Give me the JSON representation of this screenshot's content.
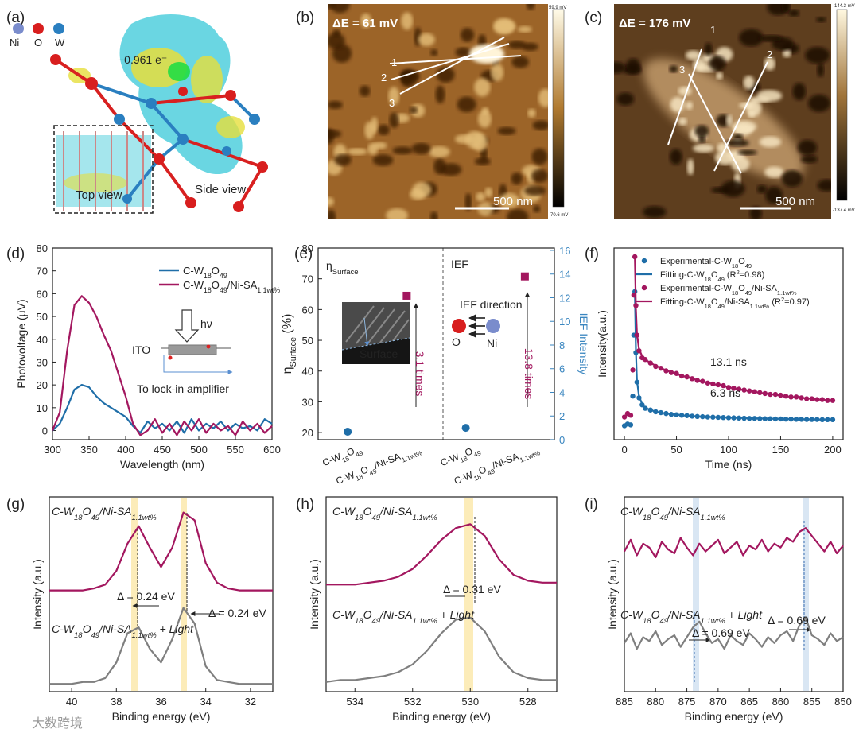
{
  "image_panels": [
    {
      "panel_label": "(a)",
      "texts": [
        "Ni",
        "O",
        "W",
        "−0.961 e⁻",
        "Top view",
        "Side view"
      ]
    },
    {
      "panel_label": "(b)",
      "texts": [
        "ΔE = 61 mV",
        "1",
        "2",
        "3",
        "500 nm"
      ],
      "colorbar_labels": [
        "59.9 mV",
        "-70.6 mV"
      ]
    },
    {
      "panel_label": "(c)",
      "texts": [
        "ΔE = 176 mV",
        "1",
        "2",
        "3",
        "500 nm"
      ],
      "colorbar_labels": [
        "144.3 mV",
        "-137.4 mV"
      ]
    }
  ],
  "watermark": "大数跨境",
  "chart_data": [
    {
      "type": "line",
      "panel_label": "(d)",
      "x": [
        300,
        310,
        320,
        330,
        340,
        350,
        360,
        370,
        380,
        390,
        400,
        410,
        420,
        430,
        440,
        450,
        460,
        470,
        480,
        490,
        500,
        510,
        520,
        530,
        540,
        550,
        560,
        570,
        580,
        590,
        600
      ],
      "series": [
        {
          "name": "C-W18O49",
          "color": "#1f6ea8",
          "values": [
            0,
            3,
            10,
            18,
            20,
            19,
            15,
            12,
            10,
            8,
            6,
            2,
            -1,
            4,
            1,
            3,
            0,
            4,
            -1,
            5,
            0,
            3,
            1,
            4,
            0,
            3,
            1,
            2,
            0,
            5,
            3
          ]
        },
        {
          "name": "C-W18O49/Ni-SA1.1wt%",
          "color": "#a3175f",
          "values": [
            0,
            8,
            35,
            55,
            59,
            56,
            50,
            42,
            35,
            25,
            15,
            3,
            -2,
            0,
            5,
            -1,
            3,
            -2,
            4,
            0,
            5,
            -1,
            3,
            0,
            2,
            -2,
            4,
            0,
            3,
            -1,
            2
          ]
        }
      ],
      "xlim": [
        300,
        600
      ],
      "ylim": [
        -4,
        80
      ],
      "xticks": [
        300,
        350,
        400,
        450,
        500,
        550,
        600
      ],
      "yticks": [
        0,
        10,
        20,
        30,
        40,
        50,
        60,
        70,
        80
      ],
      "xlabel": "Wavelength (nm)",
      "ylabel": "Photovoltage (μV)",
      "legend": "upper right",
      "annotations": [
        "hν",
        "ITO",
        "To lock-in amplifier"
      ]
    },
    {
      "type": "scatter",
      "panel_label": "(e)",
      "categories": [
        "C-W18O49",
        "C-W18O49/Ni-SA1.1wt%",
        "C-W18O49",
        "C-W18O49/Ni-SA1.1wt%"
      ],
      "point_colors": [
        "#1f6ea8",
        "#a3175f",
        "#1f6ea8",
        "#a3175f"
      ],
      "point_markers": [
        "circle",
        "square",
        "circle",
        "square"
      ],
      "series": [
        {
          "values": [
            20.3,
            64.5,
            null,
            null
          ]
        },
        {
          "axis": "y2",
          "values": [
            null,
            null,
            1.0,
            13.8
          ]
        }
      ],
      "ylim": [
        17.7,
        80
      ],
      "yticks": [
        20,
        30,
        40,
        50,
        60,
        70,
        80
      ],
      "y2lim": [
        0,
        16.2
      ],
      "y2ticks": [
        0,
        2,
        4,
        6,
        8,
        10,
        12,
        14,
        16
      ],
      "y2color": "#3a86c0",
      "ylabel": "ηSurface (%)",
      "y2label": "IEF Intensity",
      "annotations": [
        "ηSurface",
        "IEF",
        "IEF direction",
        "Surface",
        "O",
        "Ni",
        "3.1 times",
        "13.8 times"
      ]
    },
    {
      "type": "scatter",
      "panel_label": "(f)",
      "x": [
        0,
        3,
        6,
        8,
        9,
        10,
        11,
        12,
        14,
        17,
        20,
        25,
        30,
        35,
        40,
        45,
        50,
        55,
        60,
        65,
        70,
        75,
        80,
        85,
        90,
        95,
        100,
        105,
        110,
        115,
        120,
        125,
        130,
        135,
        140,
        145,
        150,
        155,
        160,
        165,
        170,
        175,
        180,
        185,
        190,
        195,
        200
      ],
      "series": [
        {
          "name": "Experimental-C-W18O49",
          "color": "#1f6ea8",
          "style": "markers",
          "values": [
            0.03,
            0.04,
            0.035,
            0.2,
            0.55,
            0.8,
            0.45,
            0.28,
            0.19,
            0.15,
            0.13,
            0.12,
            0.11,
            0.105,
            0.1,
            0.095,
            0.093,
            0.09,
            0.088,
            0.085,
            0.083,
            0.082,
            0.08,
            0.079,
            0.078,
            0.077,
            0.076,
            0.075,
            0.074,
            0.073,
            0.072,
            0.072,
            0.071,
            0.07,
            0.07,
            0.069,
            0.069,
            0.068,
            0.068,
            0.067,
            0.067,
            0.066,
            0.066,
            0.066,
            0.065,
            0.065,
            0.065
          ]
        },
        {
          "name": "Fitting-C-W18O49 (R2=0.98)",
          "color": "#1f6ea8",
          "style": "line",
          "values": [
            null,
            null,
            null,
            null,
            null,
            0.8,
            0.46,
            0.29,
            0.2,
            0.155,
            0.133,
            0.12,
            0.111,
            0.105,
            0.1,
            0.096,
            0.093,
            0.09,
            0.088,
            0.086,
            0.084,
            0.082,
            0.081,
            0.08,
            0.079,
            0.078,
            0.077,
            0.076,
            0.075,
            0.074,
            0.073,
            0.072,
            0.072,
            0.071,
            0.07,
            0.07,
            0.069,
            0.069,
            0.068,
            0.068,
            0.067,
            0.067,
            0.067,
            0.066,
            0.066,
            0.066,
            0.065
          ]
        },
        {
          "name": "Experimental-C-W18O49/Ni-SA1.1wt%",
          "color": "#a3175f",
          "style": "markers",
          "values": [
            0.08,
            0.1,
            0.09,
            0.35,
            0.78,
            1.0,
            0.72,
            0.55,
            0.46,
            0.42,
            0.41,
            0.39,
            0.37,
            0.36,
            0.345,
            0.335,
            0.33,
            0.315,
            0.31,
            0.3,
            0.29,
            0.285,
            0.275,
            0.27,
            0.265,
            0.26,
            0.25,
            0.245,
            0.24,
            0.235,
            0.23,
            0.225,
            0.22,
            0.215,
            0.21,
            0.21,
            0.205,
            0.2,
            0.195,
            0.195,
            0.19,
            0.185,
            0.185,
            0.18,
            0.18,
            0.175,
            0.175
          ]
        },
        {
          "name": "Fitting-C-W18O49/Ni-SA1.1wt% (R2=0.97)",
          "color": "#a3175f",
          "style": "line",
          "values": [
            null,
            null,
            null,
            null,
            null,
            1.0,
            0.7,
            0.56,
            0.47,
            0.43,
            0.41,
            0.39,
            0.375,
            0.36,
            0.348,
            0.337,
            0.327,
            0.318,
            0.309,
            0.3,
            0.292,
            0.284,
            0.277,
            0.27,
            0.263,
            0.257,
            0.251,
            0.245,
            0.24,
            0.234,
            0.229,
            0.224,
            0.22,
            0.215,
            0.211,
            0.207,
            0.203,
            0.2,
            0.196,
            0.193,
            0.19,
            0.187,
            0.184,
            0.181,
            0.179,
            0.177,
            0.175
          ]
        }
      ],
      "xlim": [
        -10,
        210
      ],
      "ylim": [
        -0.05,
        1.05
      ],
      "xticks": [
        0,
        50,
        100,
        150,
        200
      ],
      "xlabel": "Time (ns)",
      "ylabel": "Intensity(a.u.)",
      "legend": "upper right",
      "annotations": [
        "13.1 ns",
        "6.3 ns"
      ]
    },
    {
      "type": "line",
      "panel_label": "(g)",
      "x": [
        41,
        40.5,
        40,
        39.5,
        39,
        38.5,
        38,
        37.5,
        37,
        36.5,
        36,
        35.5,
        35,
        34.5,
        34,
        33.5,
        33,
        32.5,
        32,
        31.5,
        31
      ],
      "series": [
        {
          "name": "C-W18O49/Ni-SA1.1wt%",
          "color": "#a3175f",
          "values": [
            0.52,
            0.52,
            0.52,
            0.52,
            0.53,
            0.55,
            0.62,
            0.76,
            0.85,
            0.74,
            0.64,
            0.74,
            0.92,
            0.88,
            0.66,
            0.56,
            0.53,
            0.52,
            0.52,
            0.52,
            0.52
          ]
        },
        {
          "name": "C-W18O49/Ni-SA1.1wt% + Light",
          "color": "#7f7f7f",
          "values": [
            0.04,
            0.04,
            0.04,
            0.05,
            0.05,
            0.07,
            0.15,
            0.3,
            0.33,
            0.22,
            0.15,
            0.27,
            0.43,
            0.35,
            0.13,
            0.06,
            0.05,
            0.04,
            0.04,
            0.04,
            0.04
          ]
        }
      ],
      "xlim": [
        41,
        31
      ],
      "ylim": [
        0,
        1
      ],
      "xticks": [
        40,
        38,
        36,
        34,
        32
      ],
      "xlabel": "Binding energy (eV)",
      "ylabel": "Intensity (a.u.)",
      "legend": "inline",
      "annotations": [
        "Δ = 0.24 eV",
        "Δ = 0.24 eV"
      ]
    },
    {
      "type": "line",
      "panel_label": "(h)",
      "x": [
        535,
        534.5,
        534,
        533.5,
        533,
        532.5,
        532,
        531.5,
        531,
        530.5,
        530,
        529.5,
        529,
        528.5,
        528,
        527.5,
        527
      ],
      "series": [
        {
          "name": "C-W18O49/Ni-SA1.1wt%",
          "color": "#a3175f",
          "values": [
            0.55,
            0.55,
            0.55,
            0.56,
            0.57,
            0.59,
            0.63,
            0.7,
            0.78,
            0.84,
            0.86,
            0.8,
            0.68,
            0.6,
            0.57,
            0.56,
            0.56
          ]
        },
        {
          "name": "C-W18O49/Ni-SA1.1wt% + Light",
          "color": "#7f7f7f",
          "values": [
            0.05,
            0.06,
            0.06,
            0.07,
            0.08,
            0.1,
            0.14,
            0.21,
            0.3,
            0.37,
            0.38,
            0.31,
            0.18,
            0.1,
            0.07,
            0.06,
            0.06
          ]
        }
      ],
      "xlim": [
        535,
        527
      ],
      "ylim": [
        0,
        1
      ],
      "xticks": [
        534,
        532,
        530,
        528
      ],
      "xlabel": "Binding energy (eV)",
      "ylabel": "Intensity (a.u.)",
      "legend": "inline",
      "annotations": [
        "Δ = 0.31 eV"
      ]
    },
    {
      "type": "line",
      "panel_label": "(i)",
      "x": [
        885,
        884,
        883,
        882,
        881,
        880,
        879,
        878,
        877,
        876,
        875,
        874,
        873,
        872,
        871,
        870,
        869,
        868,
        867,
        866,
        865,
        864,
        863,
        862,
        861,
        860,
        859,
        858,
        857,
        856,
        855,
        854,
        853,
        852,
        851,
        850
      ],
      "series": [
        {
          "name": "C-W18O49/Ni-SA1.1wt%",
          "color": "#a3175f",
          "values": [
            0.72,
            0.78,
            0.7,
            0.76,
            0.74,
            0.69,
            0.77,
            0.73,
            0.71,
            0.79,
            0.74,
            0.7,
            0.76,
            0.72,
            0.75,
            0.78,
            0.71,
            0.74,
            0.77,
            0.7,
            0.75,
            0.73,
            0.78,
            0.72,
            0.76,
            0.74,
            0.79,
            0.77,
            0.82,
            0.84,
            0.8,
            0.76,
            0.72,
            0.77,
            0.71,
            0.75
          ]
        },
        {
          "name": "C-W18O49/Ni-SA1.1wt% + Light",
          "color": "#7f7f7f",
          "values": [
            0.25,
            0.3,
            0.22,
            0.28,
            0.26,
            0.31,
            0.24,
            0.27,
            0.29,
            0.23,
            0.28,
            0.33,
            0.36,
            0.3,
            0.25,
            0.27,
            0.22,
            0.29,
            0.26,
            0.24,
            0.3,
            0.27,
            0.23,
            0.28,
            0.25,
            0.29,
            0.31,
            0.26,
            0.34,
            0.38,
            0.29,
            0.27,
            0.24,
            0.3,
            0.26,
            0.28
          ]
        }
      ],
      "xlim": [
        885,
        850
      ],
      "ylim": [
        0,
        1
      ],
      "xticks": [
        885,
        880,
        875,
        870,
        865,
        860,
        855,
        850
      ],
      "xlabel": "Binding energy (eV)",
      "ylabel": "Intensity (a.u.)",
      "legend": "inline",
      "annotations": [
        "Δ = 0.69 eV",
        "Δ = 0.69 eV"
      ]
    }
  ]
}
